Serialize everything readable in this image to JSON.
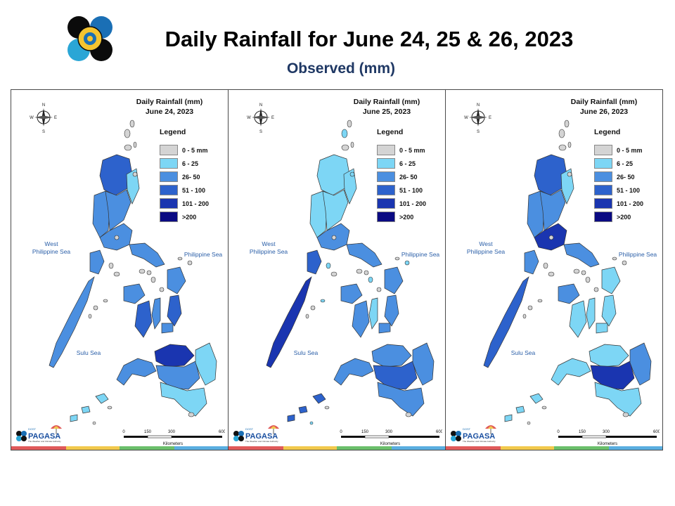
{
  "header": {
    "title": "Daily Rainfall for June 24, 25 & 26, 2023",
    "subtitle": "Observed (mm)"
  },
  "panels": [
    {
      "title_line1": "Daily Rainfall (mm)",
      "title_line2": "June 24, 2023",
      "regions": {
        "luzon_n": 3,
        "luzon_w": 2,
        "luzon_c": 2,
        "luzon_e": 1,
        "luzon_s": 2,
        "bicol": 2,
        "mindoro": 2,
        "palawan": 2,
        "samar": 2,
        "leyte": 3,
        "panay": 2,
        "negros": 3,
        "cebu": 2,
        "bohol": 2,
        "zamboanga": 2,
        "mindanao_n": 4,
        "mindanao_c": 2,
        "mindanao_e": 1,
        "mindanao_s": 1,
        "sulu": 1
      }
    },
    {
      "title_line1": "Daily Rainfall (mm)",
      "title_line2": "June 25, 2023",
      "regions": {
        "luzon_n": 1,
        "luzon_w": 1,
        "luzon_c": 1,
        "luzon_e": 1,
        "luzon_s": 2,
        "bicol": 2,
        "mindoro": 3,
        "palawan": 4,
        "samar": 2,
        "leyte": 2,
        "panay": 2,
        "negros": 2,
        "cebu": 1,
        "bohol": 2,
        "zamboanga": 2,
        "mindanao_n": 2,
        "mindanao_c": 3,
        "mindanao_e": 2,
        "mindanao_s": 2,
        "sulu": 3
      }
    },
    {
      "title_line1": "Daily Rainfall (mm)",
      "title_line2": "June 26, 2023",
      "regions": {
        "luzon_n": 3,
        "luzon_w": 2,
        "luzon_c": 2,
        "luzon_e": 1,
        "luzon_s": 4,
        "bicol": 2,
        "mindoro": 2,
        "palawan": 3,
        "samar": 1,
        "leyte": 1,
        "panay": 2,
        "negros": 1,
        "cebu": 1,
        "bohol": 1,
        "zamboanga": 1,
        "mindanao_n": 1,
        "mindanao_c": 4,
        "mindanao_e": 2,
        "mindanao_s": 1,
        "sulu": 1
      }
    }
  ],
  "legend": {
    "title": "Legend",
    "items": [
      {
        "label": "0 - 5 mm",
        "color": "#d4d4d4"
      },
      {
        "label": "6 - 25",
        "color": "#7dd6f5"
      },
      {
        "label": "26- 50",
        "color": "#4b8fe0"
      },
      {
        "label": "51 - 100",
        "color": "#2d62cc"
      },
      {
        "label": "101 - 200",
        "color": "#1a35b0"
      },
      {
        "label": ">200",
        "color": "#0a0a82"
      }
    ]
  },
  "labels": {
    "west_ph_sea_1": "West",
    "west_ph_sea_2": "Philippine Sea",
    "ph_sea": "Philippine Sea",
    "sulu_sea": "Sulu Sea",
    "compass_n": "N",
    "compass_s": "S",
    "compass_e": "E",
    "compass_w": "W"
  },
  "scale": {
    "ticks": [
      "0",
      "150",
      "300",
      "600"
    ],
    "unit": "Kilometers"
  },
  "brand": {
    "name": "PAGASA",
    "tag": "DOST",
    "tagline": "The Weather and Climate Authority"
  },
  "colors": {
    "title_blue": "#1f3864",
    "sea_label": "#2b5fa8",
    "border": "#4a4a4a"
  },
  "strip_colors": [
    "#e05a5a",
    "#f2c94c",
    "#6bbf6b",
    "#5aaee0"
  ]
}
